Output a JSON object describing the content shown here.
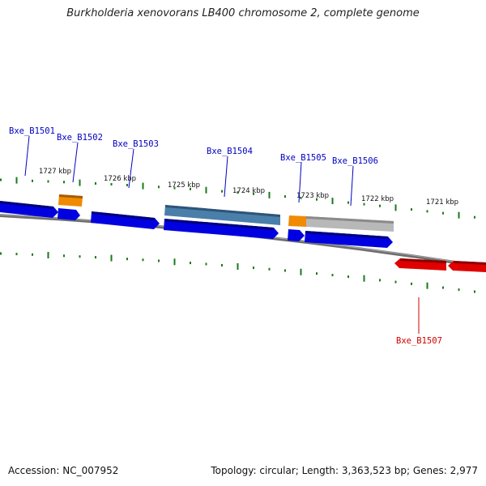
{
  "title": "Burkholderia xenovorans LB400 chromosome 2, complete genome",
  "footer": {
    "accession": "Accession: NC_007952",
    "summary": "Topology: circular; Length: 3,363,523 bp; Genes: 2,977"
  },
  "colors": {
    "forward_gene": "#0000e0",
    "reverse_gene": "#e00000",
    "rna_orange": "#f08a00",
    "pseudogene_steel": "#4a7faa",
    "pseudogene_grey": "#b8b8b8",
    "tick_green": "#1a7a1a",
    "backbone": "#808080"
  },
  "ticks": {
    "labels": [
      "1727 kbp",
      "1726 kbp",
      "1725 kbp",
      "1724 kbp",
      "1723 kbp",
      "1722 kbp",
      "1721 kbp"
    ]
  },
  "genes": {
    "forward": [
      {
        "label": "Bxe_B1501"
      },
      {
        "label": "Bxe_B1502"
      },
      {
        "label": "Bxe_B1503"
      },
      {
        "label": "Bxe_B1504"
      },
      {
        "label": "Bxe_B1505"
      },
      {
        "label": "Bxe_B1506"
      }
    ],
    "reverse": [
      {
        "label": "Bxe_B1507"
      }
    ]
  }
}
